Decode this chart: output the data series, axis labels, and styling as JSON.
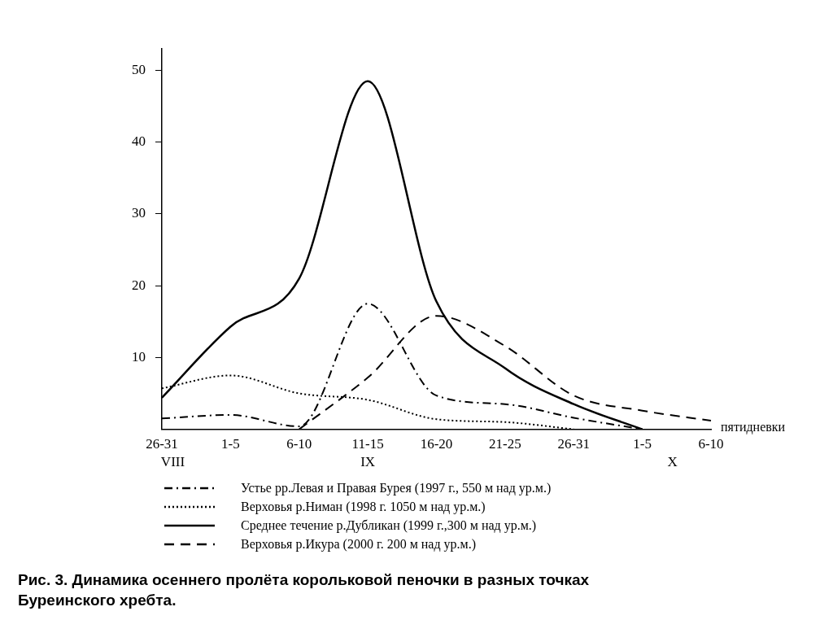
{
  "chart_data": {
    "type": "line",
    "title": "Рис. 3. Динамика осеннего пролёта корольковой пеночки в разных точках Буреинского хребта.",
    "xlabel": "пятидневки",
    "categories": [
      "26-31",
      "1-5",
      "6-10",
      "11-15",
      "16-20",
      "21-25",
      "26-31",
      "1-5",
      "6-10"
    ],
    "annotations": [
      "VIII",
      "IX",
      "X"
    ],
    "series": [
      {
        "name": "Устье рр.Левая и Правая Бурея (1997 г., 550 м над ур.м.)",
        "color": "#000000",
        "line_style": "dashdot",
        "values": [
          1.5,
          2,
          0.4,
          17.5,
          4.7,
          3.5,
          1.6,
          0,
          null
        ]
      },
      {
        "name": "Верховья р.Ниман (1998 г. 1050 м над ур.м.)",
        "color": "#000000",
        "line_style": "dotted",
        "values": [
          5.7,
          7.5,
          5,
          4.1,
          1.4,
          1,
          0,
          null,
          null
        ]
      },
      {
        "name": "Среднее течение р.Дубликан (1999 г.,300 м над ур.м.)",
        "color": "#000000",
        "line_style": "solid",
        "values": [
          4.4,
          14.3,
          21,
          48.5,
          17.8,
          8.5,
          3.5,
          0,
          null
        ]
      },
      {
        "name": "Верховья р.Икура (2000 г. 200 м над ур.м.)",
        "color": "#000000",
        "line_style": "dashed",
        "values": [
          null,
          null,
          0,
          7.2,
          15.8,
          11.6,
          4.7,
          2.6,
          1.2
        ]
      }
    ],
    "ylim": [
      0,
      53
    ],
    "yticks": [
      10,
      20,
      30,
      40,
      50
    ],
    "grid": false,
    "legend": "bottom",
    "marker": "none"
  }
}
